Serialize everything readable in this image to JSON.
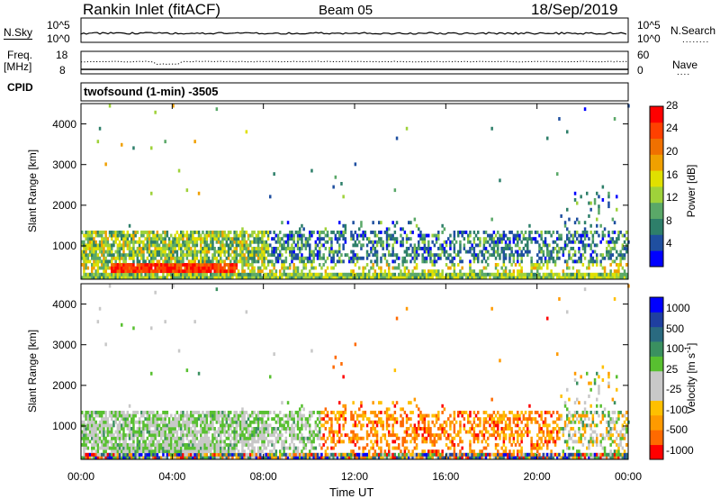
{
  "header": {
    "site": "Rankin Inlet (fitACF)",
    "beam": "Beam 05",
    "date": "18/Sep/2019"
  },
  "top_strip": {
    "left_label": "N.Sky",
    "right_label": "N.Search",
    "left_ticks": [
      "10^5",
      "10^0"
    ],
    "right_ticks": [
      "10^5",
      "10^0"
    ],
    "freq_label_line1": "Freq.",
    "freq_label_line2": "[MHz]",
    "freq_ticks": [
      "18",
      "8"
    ],
    "nave_label": "Nave",
    "nave_ticks": [
      "60",
      "0"
    ],
    "cpid_label": "CPID",
    "cpid_text": "twofsound (1-min) -3505"
  },
  "colors": {
    "power": [
      "#0000ff",
      "#1f4fa0",
      "#2e7f6a",
      "#5aa868",
      "#9fd23a",
      "#e0e000",
      "#f0a000",
      "#f07000",
      "#ff4000",
      "#ff0000"
    ],
    "velocity": [
      "#ff0000",
      "#ff6a00",
      "#ff9a00",
      "#ffc000",
      "#c8c8c8",
      "#c8c8c8",
      "#58c030",
      "#3a9060",
      "#2a6a80",
      "#1f3fa0",
      "#0000ff"
    ]
  },
  "chart_data": [
    {
      "type": "heatmap",
      "name": "power",
      "ylabel": "Slant Range [km]",
      "xlabel": "Time UT",
      "xlim": [
        "00:00",
        "24:00"
      ],
      "ylim": [
        180,
        4500
      ],
      "x_ticks": [
        "00:00",
        "04:00",
        "08:00",
        "12:00",
        "16:00",
        "20:00",
        "00:00"
      ],
      "y_ticks": [
        1000,
        2000,
        3000,
        4000
      ],
      "colorbar_label": "Power [dB]",
      "colorbar_ticks": [
        "4",
        "8",
        "12",
        "16",
        "20",
        "24",
        "28"
      ],
      "colorbar_range": [
        0,
        30
      ],
      "regions": [
        {
          "t": [
            0.2,
            10.6
          ],
          "r": [
            180,
            260
          ],
          "level": "strong-ground"
        },
        {
          "t": [
            1.3,
            6.8
          ],
          "r": [
            260,
            560
          ],
          "level": "very-strong"
        },
        {
          "t": [
            0.0,
            8.2
          ],
          "r": [
            500,
            1300
          ],
          "level": "moderate"
        },
        {
          "t": [
            8.5,
            24.0
          ],
          "r": [
            500,
            1300
          ],
          "level": "weak"
        },
        {
          "t": [
            21.0,
            24.0
          ],
          "r": [
            1300,
            2300
          ],
          "level": "weak-patchy"
        }
      ]
    },
    {
      "type": "heatmap",
      "name": "velocity",
      "ylabel": "Slant Range [km]",
      "xlabel": "Time UT",
      "xlim": [
        "00:00",
        "24:00"
      ],
      "ylim": [
        180,
        4500
      ],
      "x_ticks": [
        "00:00",
        "04:00",
        "08:00",
        "12:00",
        "16:00",
        "20:00",
        "00:00"
      ],
      "y_ticks": [
        1000,
        2000,
        3000,
        4000
      ],
      "colorbar_label": "Velocity [m s^-1]",
      "colorbar_ticks": [
        "1000",
        "500",
        "100",
        "25",
        "-25",
        "-100",
        "-500",
        "-1000"
      ],
      "regions": [
        {
          "t": [
            0.0,
            10.5
          ],
          "r": [
            180,
            1300
          ],
          "level": "near-zero"
        },
        {
          "t": [
            10.5,
            21.0
          ],
          "r": [
            500,
            1300
          ],
          "level": "negative"
        },
        {
          "t": [
            21.0,
            24.0
          ],
          "r": [
            500,
            1300
          ],
          "level": "mixed"
        }
      ]
    }
  ],
  "xaxis_title": "Time UT"
}
